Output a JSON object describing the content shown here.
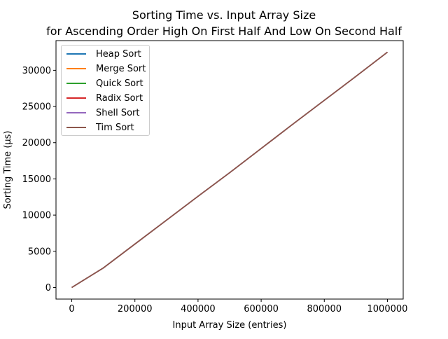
{
  "chart_data": {
    "type": "line",
    "title": "Sorting Time vs. Input Array Size",
    "subtitle": "for Ascending Order High On First Half And Low On Second Half",
    "xlabel": "Input Array Size (entries)",
    "ylabel": "Sorting Time (µs)",
    "xlim": [
      -50000,
      1050000
    ],
    "ylim": [
      -1600,
      34100
    ],
    "xticks": [
      0,
      200000,
      400000,
      600000,
      800000,
      1000000
    ],
    "yticks": [
      0,
      5000,
      10000,
      15000,
      20000,
      25000,
      30000
    ],
    "grid": false,
    "legend_position": "upper-left",
    "x": [
      0,
      100000,
      200000,
      300000,
      400000,
      500000,
      600000,
      700000,
      800000,
      900000,
      1000000
    ],
    "series": [
      {
        "name": "Heap Sort",
        "color": "#1f77b4",
        "values": [
          0,
          2700,
          6000,
          9300,
          12600,
          15850,
          19200,
          22550,
          25850,
          29150,
          32500
        ]
      },
      {
        "name": "Merge Sort",
        "color": "#ff7f0e",
        "values": [
          0,
          2700,
          6000,
          9300,
          12600,
          15850,
          19200,
          22550,
          25850,
          29150,
          32500
        ]
      },
      {
        "name": "Quick Sort",
        "color": "#2ca02c",
        "values": [
          0,
          2700,
          6000,
          9300,
          12600,
          15850,
          19200,
          22550,
          25850,
          29150,
          32500
        ]
      },
      {
        "name": "Radix Sort",
        "color": "#d62728",
        "values": [
          0,
          2700,
          6000,
          9300,
          12600,
          15850,
          19200,
          22550,
          25850,
          29150,
          32500
        ]
      },
      {
        "name": "Shell Sort",
        "color": "#9467bd",
        "values": [
          0,
          2700,
          6000,
          9300,
          12600,
          15850,
          19200,
          22550,
          25850,
          29150,
          32500
        ]
      },
      {
        "name": "Tim Sort",
        "color": "#8c564b",
        "values": [
          0,
          2700,
          6000,
          9300,
          12600,
          15850,
          19200,
          22550,
          25850,
          29150,
          32500
        ]
      }
    ]
  }
}
